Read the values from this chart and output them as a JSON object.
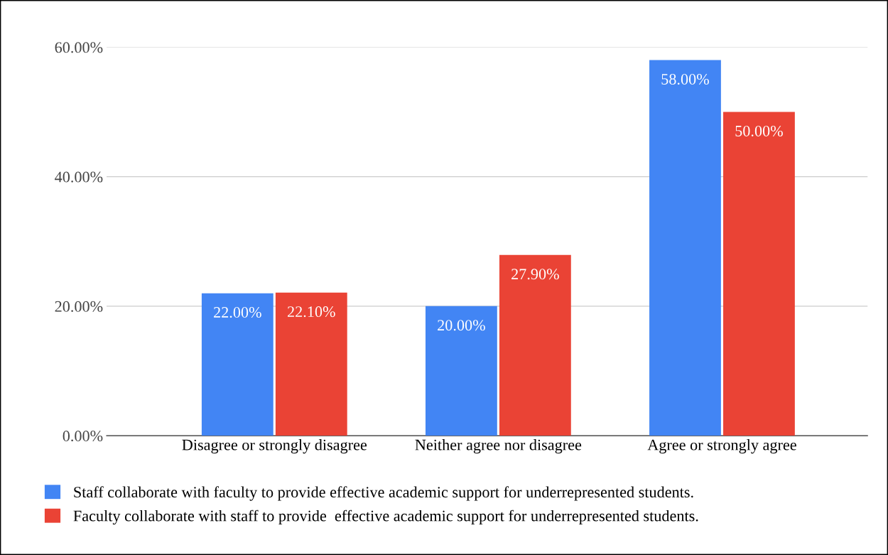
{
  "chart_data": {
    "type": "bar",
    "categories": [
      "Disagree or strongly disagree",
      "Neither agree nor disagree",
      "Agree or strongly agree"
    ],
    "series": [
      {
        "name": "Staff collaborate with faculty to provide effective academic support for underrepresented students.",
        "color": "#4285f4",
        "values": [
          22.0,
          20.0,
          58.0
        ],
        "value_labels": [
          "22.00%",
          "20.00%",
          "58.00%"
        ]
      },
      {
        "name": "Faculty collaborate with staff to provide  effective academic support for underrepresented students.",
        "color": "#ea4335",
        "values": [
          22.1,
          27.9,
          50.0
        ],
        "value_labels": [
          "22.10%",
          "27.90%",
          "50.00%"
        ]
      }
    ],
    "ylim": [
      0,
      60
    ],
    "yticks": [
      {
        "value": 0,
        "label": "0.00%"
      },
      {
        "value": 20,
        "label": "20.00%"
      },
      {
        "value": 40,
        "label": "40.00%"
      },
      {
        "value": 60,
        "label": "60.00%"
      }
    ],
    "grid": "y",
    "legend": "bottom"
  }
}
